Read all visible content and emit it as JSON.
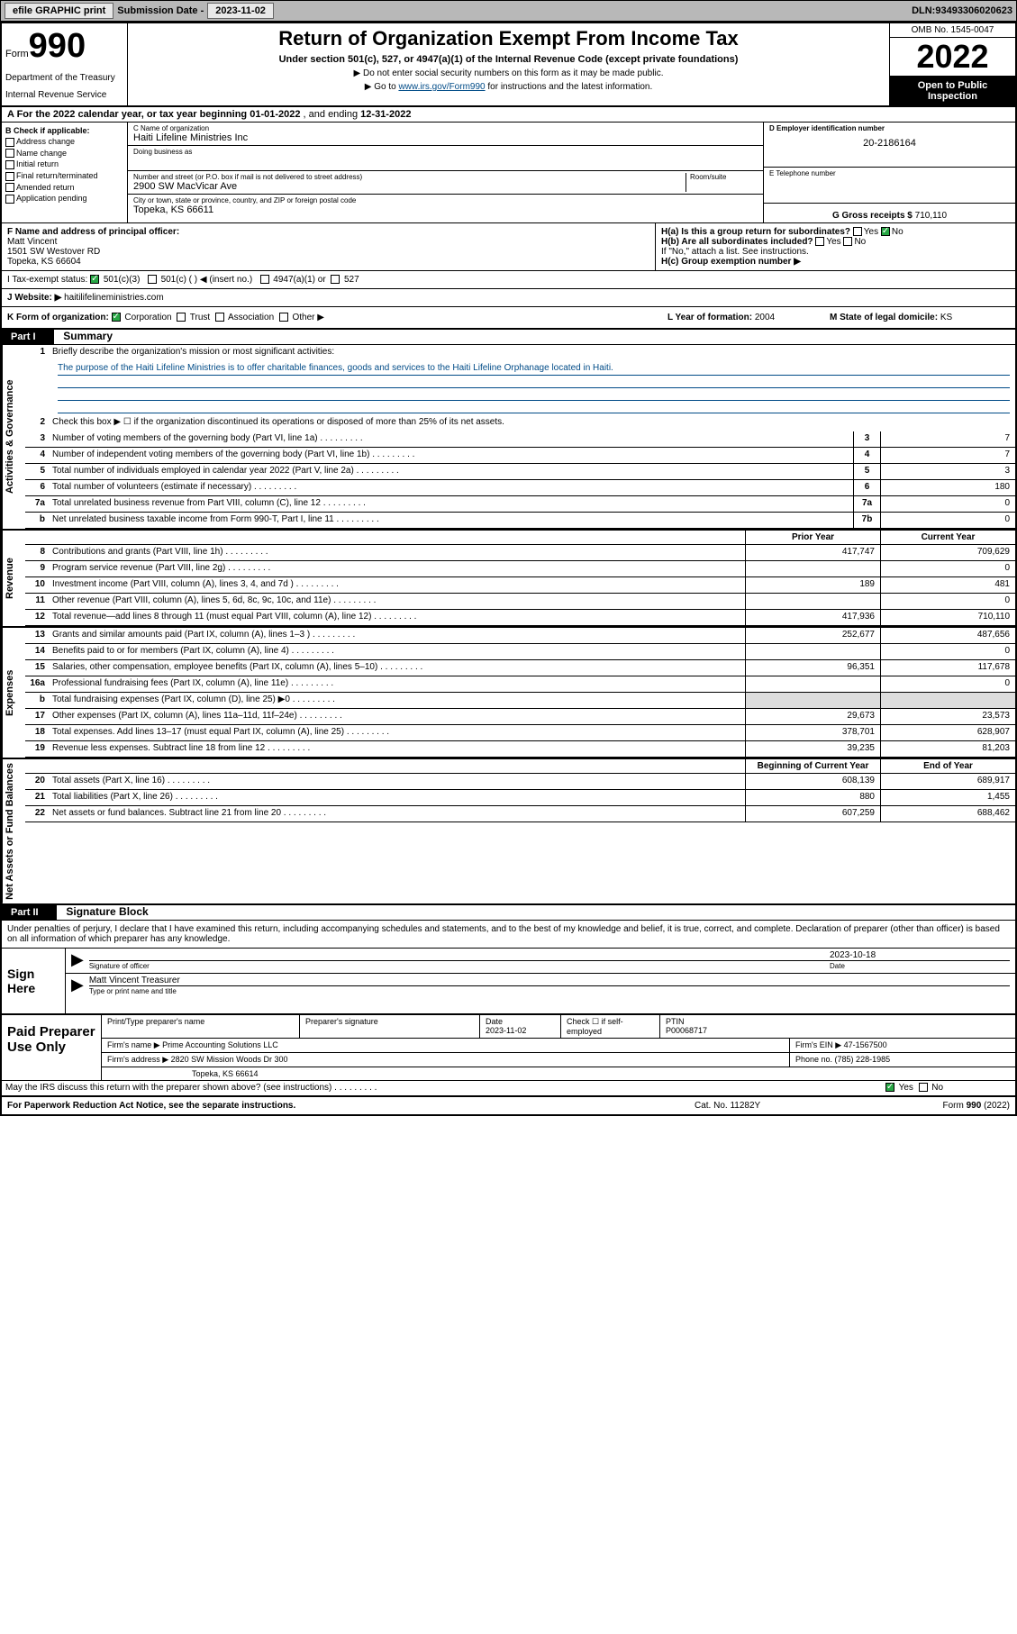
{
  "topbar": {
    "efile": "efile GRAPHIC print",
    "submission_label": "Submission Date - ",
    "submission_date": "2023-11-02",
    "dln_label": "DLN: ",
    "dln": "93493306020623"
  },
  "header": {
    "form_prefix": "Form",
    "form_number": "990",
    "title": "Return of Organization Exempt From Income Tax",
    "subtitle": "Under section 501(c), 527, or 4947(a)(1) of the Internal Revenue Code (except private foundations)",
    "note1": "▶ Do not enter social security numbers on this form as it may be made public.",
    "note2_prefix": "▶ Go to ",
    "note2_link": "www.irs.gov/Form990",
    "note2_suffix": " for instructions and the latest information.",
    "omb": "OMB No. 1545-0047",
    "year": "2022",
    "inspect": "Open to Public Inspection",
    "dept": "Department of the Treasury",
    "irs": "Internal Revenue Service"
  },
  "row_a": {
    "prefix": "A For the 2022 calendar year, or tax year beginning ",
    "begin": "01-01-2022",
    "mid": " , and ending ",
    "end": "12-31-2022"
  },
  "box_b": {
    "title": "B Check if applicable:",
    "opts": [
      "Address change",
      "Name change",
      "Initial return",
      "Final return/terminated",
      "Amended return",
      "Application pending"
    ]
  },
  "box_c": {
    "name_label": "C Name of organization",
    "name": "Haiti Lifeline Ministries Inc",
    "dba_label": "Doing business as",
    "dba": "",
    "street_label": "Number and street (or P.O. box if mail is not delivered to street address)",
    "room_label": "Room/suite",
    "street": "2900 SW MacVicar Ave",
    "city_label": "City or town, state or province, country, and ZIP or foreign postal code",
    "city": "Topeka, KS  66611"
  },
  "box_d": {
    "label": "D Employer identification number",
    "value": "20-2186164"
  },
  "box_e": {
    "label": "E Telephone number",
    "value": ""
  },
  "box_g": {
    "label": "G Gross receipts $ ",
    "value": "710,110"
  },
  "box_f": {
    "label": "F  Name and address of principal officer:",
    "name": "Matt Vincent",
    "street": "1501 SW Westover RD",
    "city": "Topeka, KS  66604"
  },
  "box_h": {
    "a_label": "H(a)  Is this a group return for subordinates?",
    "a_yes": "Yes",
    "a_no": "No",
    "b_label": "H(b)  Are all subordinates included?",
    "b_yes": "Yes",
    "b_no": "No",
    "b_note": "If \"No,\" attach a list. See instructions.",
    "c_label": "H(c)  Group exemption number ▶"
  },
  "row_i": {
    "label": "I    Tax-exempt status:",
    "opt1": "501(c)(3)",
    "opt2": "501(c) (  ) ◀ (insert no.)",
    "opt3": "4947(a)(1) or",
    "opt4": "527"
  },
  "row_j": {
    "label": "J   Website: ▶ ",
    "value": "haitilifelineministries.com"
  },
  "row_k": {
    "label": "K Form of organization:",
    "opts": [
      "Corporation",
      "Trust",
      "Association",
      "Other ▶"
    ],
    "l_label": "L Year of formation: ",
    "l_value": "2004",
    "m_label": "M State of legal domicile: ",
    "m_value": "KS"
  },
  "part1": {
    "header": "Part I",
    "title": "Summary",
    "side_labels": [
      "Activities & Governance",
      "Revenue",
      "Expenses",
      "Net Assets or Fund Balances"
    ],
    "line1_label": "Briefly describe the organization's mission or most significant activities:",
    "mission": "The purpose of the Haiti Lifeline Ministries is to offer charitable finances, goods and services to the Haiti Lifeline Orphanage located in Haiti.",
    "line2": "Check this box ▶ ☐  if the organization discontinued its operations or disposed of more than 25% of its net assets.",
    "rows_gov": [
      {
        "n": "3",
        "t": "Number of voting members of the governing body (Part VI, line 1a)",
        "box": "3",
        "v": "7"
      },
      {
        "n": "4",
        "t": "Number of independent voting members of the governing body (Part VI, line 1b)",
        "box": "4",
        "v": "7"
      },
      {
        "n": "5",
        "t": "Total number of individuals employed in calendar year 2022 (Part V, line 2a)",
        "box": "5",
        "v": "3"
      },
      {
        "n": "6",
        "t": "Total number of volunteers (estimate if necessary)",
        "box": "6",
        "v": "180"
      },
      {
        "n": "7a",
        "t": "Total unrelated business revenue from Part VIII, column (C), line 12",
        "box": "7a",
        "v": "0"
      },
      {
        "n": "b",
        "t": "Net unrelated business taxable income from Form 990-T, Part I, line 11",
        "box": "7b",
        "v": "0"
      }
    ],
    "prior_header": "Prior Year",
    "current_header": "Current Year",
    "rows_rev": [
      {
        "n": "8",
        "t": "Contributions and grants (Part VIII, line 1h)",
        "p": "417,747",
        "c": "709,629"
      },
      {
        "n": "9",
        "t": "Program service revenue (Part VIII, line 2g)",
        "p": "",
        "c": "0"
      },
      {
        "n": "10",
        "t": "Investment income (Part VIII, column (A), lines 3, 4, and 7d )",
        "p": "189",
        "c": "481"
      },
      {
        "n": "11",
        "t": "Other revenue (Part VIII, column (A), lines 5, 6d, 8c, 9c, 10c, and 11e)",
        "p": "",
        "c": "0"
      },
      {
        "n": "12",
        "t": "Total revenue—add lines 8 through 11 (must equal Part VIII, column (A), line 12)",
        "p": "417,936",
        "c": "710,110"
      }
    ],
    "rows_exp": [
      {
        "n": "13",
        "t": "Grants and similar amounts paid (Part IX, column (A), lines 1–3 )",
        "p": "252,677",
        "c": "487,656"
      },
      {
        "n": "14",
        "t": "Benefits paid to or for members (Part IX, column (A), line 4)",
        "p": "",
        "c": "0"
      },
      {
        "n": "15",
        "t": "Salaries, other compensation, employee benefits (Part IX, column (A), lines 5–10)",
        "p": "96,351",
        "c": "117,678"
      },
      {
        "n": "16a",
        "t": "Professional fundraising fees (Part IX, column (A), line 11e)",
        "p": "",
        "c": "0"
      },
      {
        "n": "b",
        "t": "Total fundraising expenses (Part IX, column (D), line 25) ▶0",
        "p": "shaded",
        "c": "shaded"
      },
      {
        "n": "17",
        "t": "Other expenses (Part IX, column (A), lines 11a–11d, 11f–24e)",
        "p": "29,673",
        "c": "23,573"
      },
      {
        "n": "18",
        "t": "Total expenses. Add lines 13–17 (must equal Part IX, column (A), line 25)",
        "p": "378,701",
        "c": "628,907"
      },
      {
        "n": "19",
        "t": "Revenue less expenses. Subtract line 18 from line 12",
        "p": "39,235",
        "c": "81,203"
      }
    ],
    "begin_header": "Beginning of Current Year",
    "end_header": "End of Year",
    "rows_net": [
      {
        "n": "20",
        "t": "Total assets (Part X, line 16)",
        "p": "608,139",
        "c": "689,917"
      },
      {
        "n": "21",
        "t": "Total liabilities (Part X, line 26)",
        "p": "880",
        "c": "1,455"
      },
      {
        "n": "22",
        "t": "Net assets or fund balances. Subtract line 21 from line 20",
        "p": "607,259",
        "c": "688,462"
      }
    ]
  },
  "part2": {
    "header": "Part II",
    "title": "Signature Block",
    "declaration": "Under penalties of perjury, I declare that I have examined this return, including accompanying schedules and statements, and to the best of my knowledge and belief, it is true, correct, and complete. Declaration of preparer (other than officer) is based on all information of which preparer has any knowledge.",
    "sign_here": "Sign Here",
    "sig_officer_label": "Signature of officer",
    "sig_date_label": "Date",
    "sig_date": "2023-10-18",
    "sig_name": "Matt Vincent Treasurer",
    "sig_name_label": "Type or print name and title",
    "paid_label": "Paid Preparer Use Only",
    "prep_name_label": "Print/Type preparer's name",
    "prep_sig_label": "Preparer's signature",
    "prep_date_label": "Date",
    "prep_date": "2023-11-02",
    "prep_check_label": "Check ☐ if self-employed",
    "ptin_label": "PTIN",
    "ptin": "P00068717",
    "firm_name_label": "Firm's name    ▶ ",
    "firm_name": "Prime Accounting Solutions LLC",
    "firm_ein_label": "Firm's EIN ▶ ",
    "firm_ein": "47-1567500",
    "firm_addr_label": "Firm's address ▶ ",
    "firm_addr1": "2820 SW Mission Woods Dr 300",
    "firm_addr2": "Topeka, KS  66614",
    "phone_label": "Phone no. ",
    "phone": "(785) 228-1985",
    "discuss": "May the IRS discuss this return with the preparer shown above? (see instructions)",
    "discuss_yes": "Yes",
    "discuss_no": "No"
  },
  "footer": {
    "left": "For Paperwork Reduction Act Notice, see the separate instructions.",
    "mid": "Cat. No. 11282Y",
    "right": "Form 990 (2022)"
  }
}
